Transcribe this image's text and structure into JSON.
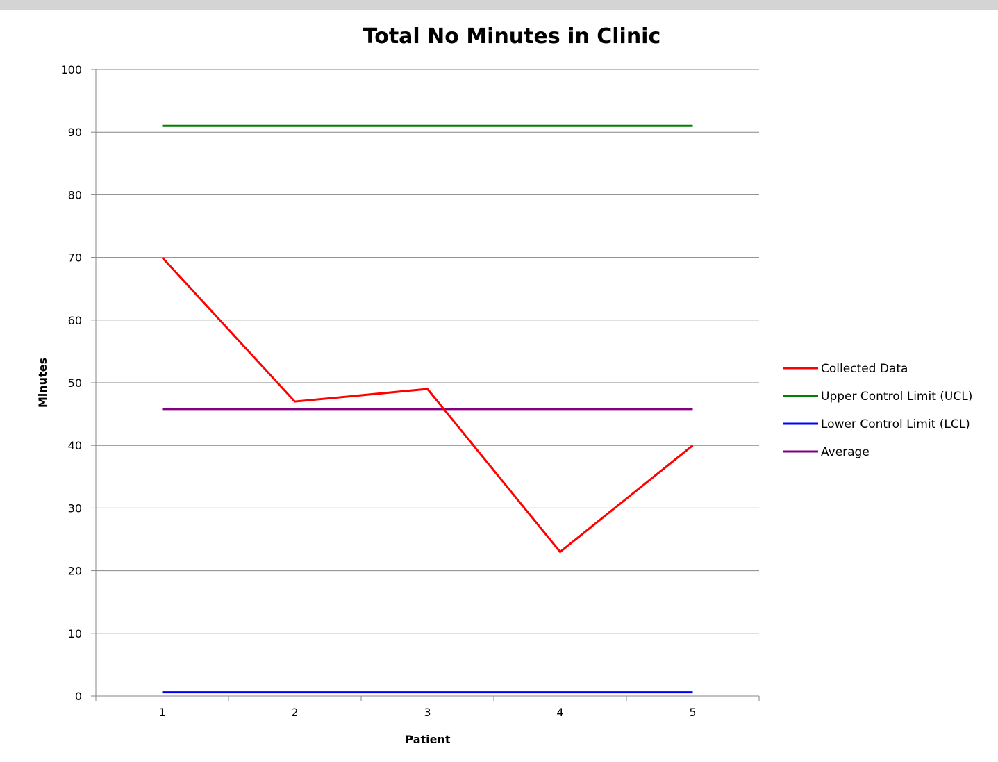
{
  "chart_data": {
    "type": "line",
    "title": "Total No Minutes in Clinic",
    "xlabel": "Patient",
    "ylabel": "Minutes",
    "categories": [
      "1",
      "2",
      "3",
      "4",
      "5"
    ],
    "ylim": [
      0,
      100
    ],
    "yticks": [
      0,
      10,
      20,
      30,
      40,
      50,
      60,
      70,
      80,
      90,
      100
    ],
    "grid": "horizontal",
    "legend": "right",
    "series": [
      {
        "name": "Collected Data",
        "values": [
          70,
          47,
          49,
          23,
          40
        ],
        "color": "#ff0000"
      },
      {
        "name": "Upper Control Limit (UCL)",
        "values": [
          91,
          91,
          91,
          91,
          91
        ],
        "color": "#008000"
      },
      {
        "name": "Lower Control Limit (LCL)",
        "values": [
          0.6,
          0.6,
          0.6,
          0.6,
          0.6
        ],
        "color": "#0000ff"
      },
      {
        "name": "Average",
        "values": [
          45.8,
          45.8,
          45.8,
          45.8,
          45.8
        ],
        "color": "#800080"
      }
    ]
  }
}
